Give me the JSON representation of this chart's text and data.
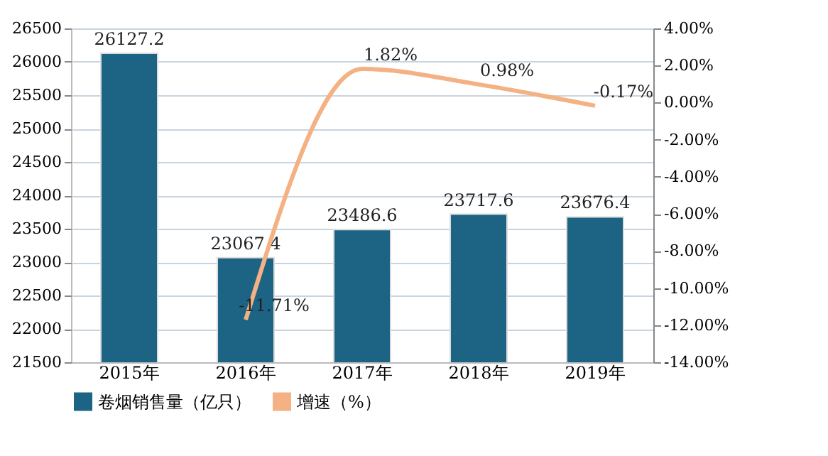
{
  "chart_data": {
    "type": "bar",
    "categories": [
      "2015年",
      "2016年",
      "2017年",
      "2018年",
      "2019年"
    ],
    "series": [
      {
        "name": "卷烟销售量（亿只）",
        "color": "#1c6384",
        "values": [
          26127.2,
          23067.4,
          23486.6,
          23717.6,
          23676.4
        ],
        "value_labels": [
          "26127.2",
          "23067.4",
          "23486.6",
          "23717.6",
          "23676.4"
        ]
      },
      {
        "name": "增速（%）",
        "type": "line",
        "axis": "y2",
        "color": "#f4b183",
        "values": [
          null,
          -11.71,
          1.82,
          0.98,
          -0.17
        ],
        "value_labels": [
          null,
          "-11.71%",
          "1.82%",
          "0.98%",
          "-0.17%"
        ]
      }
    ],
    "ylim": [
      21500,
      26500
    ],
    "yticks": [
      21500,
      22000,
      22500,
      23000,
      23500,
      24000,
      24500,
      25000,
      25500,
      26000,
      26500
    ],
    "y2lim": [
      -14,
      4
    ],
    "y2ticks": [
      {
        "value": -14,
        "label": "-14.00%"
      },
      {
        "value": -12,
        "label": "-12.00%"
      },
      {
        "value": -10,
        "label": "-10.00%"
      },
      {
        "value": -8,
        "label": "-8.00%"
      },
      {
        "value": -6,
        "label": "-6.00%"
      },
      {
        "value": -4,
        "label": "-4.00%"
      },
      {
        "value": -2,
        "label": "-2.00%"
      },
      {
        "value": 0,
        "label": "0.00%"
      },
      {
        "value": 2,
        "label": "2.00%"
      },
      {
        "value": 4,
        "label": "4.00%"
      }
    ],
    "grid": "y",
    "legend": "bottom",
    "marker": "none",
    "line_style": "solid"
  }
}
